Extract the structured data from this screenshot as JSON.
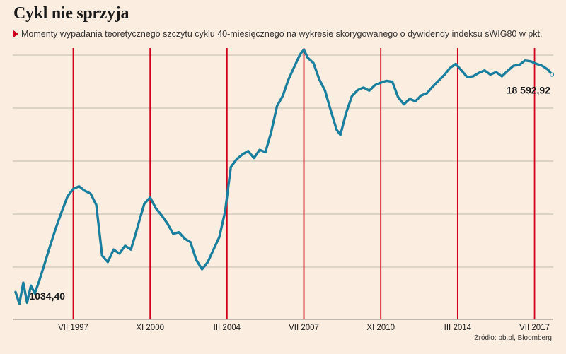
{
  "header": {
    "title": "Cykl nie sprzyja",
    "subtitle": "Momenty wypadania teoretycznego szczytu cyklu 40-miesięcznego na wykresie skorygowanego o dywidendy indeksu sWIG80 w pkt."
  },
  "footer": {
    "source": "Źródło: pb.pl, Bloomberg"
  },
  "colors": {
    "background": "#fbeee0",
    "line": "#1a7e9e",
    "cycle_marker": "#d0021b",
    "grid": "#bfb6ab"
  },
  "chart_data": {
    "type": "line",
    "title": "Cykl nie sprzyja",
    "subtitle": "Momenty wypadania teoretycznego szczytu cyklu 40-miesięcznego na wykresie skorygowanego o dywidendy indeksu sWIG80 w pkt.",
    "xlabel": "",
    "ylabel": "",
    "x_tick_labels": [
      "VII 1997",
      "XI 2000",
      "III 2004",
      "VII 2007",
      "XI 2010",
      "III 2014",
      "VII 2017"
    ],
    "xlim": [
      "1995-01",
      "2018-04"
    ],
    "ylog": true,
    "ylim": [
      850,
      26000
    ],
    "grid": "horizontal",
    "cycle_peaks": [
      "1997-07",
      "2000-11",
      "2004-03",
      "2007-07",
      "2010-11",
      "2014-03",
      "2017-07"
    ],
    "annotations": {
      "start_value": "1034,40",
      "end_value": "18 592,92"
    },
    "series": [
      {
        "points": [
          [
            "1995-01",
            1200
          ],
          [
            "1995-03",
            1034
          ],
          [
            "1995-05",
            1350
          ],
          [
            "1995-07",
            1050
          ],
          [
            "1995-09",
            1300
          ],
          [
            "1995-11",
            1180
          ],
          [
            "1996-01",
            1350
          ],
          [
            "1996-04",
            1700
          ],
          [
            "1996-07",
            2150
          ],
          [
            "1996-10",
            2700
          ],
          [
            "1997-01",
            3300
          ],
          [
            "1997-04",
            4000
          ],
          [
            "1997-07",
            4400
          ],
          [
            "1997-10",
            4550
          ],
          [
            "1998-01",
            4300
          ],
          [
            "1998-04",
            4150
          ],
          [
            "1998-07",
            3600
          ],
          [
            "1998-10",
            1900
          ],
          [
            "1999-01",
            1750
          ],
          [
            "1999-04",
            2050
          ],
          [
            "1999-07",
            1950
          ],
          [
            "1999-10",
            2150
          ],
          [
            "2000-01",
            2050
          ],
          [
            "2000-03",
            2400
          ],
          [
            "2000-06",
            3100
          ],
          [
            "2000-08",
            3650
          ],
          [
            "2000-11",
            3950
          ],
          [
            "2001-02",
            3450
          ],
          [
            "2001-05",
            3150
          ],
          [
            "2001-08",
            2850
          ],
          [
            "2001-11",
            2500
          ],
          [
            "2002-02",
            2550
          ],
          [
            "2002-05",
            2350
          ],
          [
            "2002-08",
            2250
          ],
          [
            "2002-11",
            1800
          ],
          [
            "2003-02",
            1600
          ],
          [
            "2003-05",
            1750
          ],
          [
            "2003-08",
            2050
          ],
          [
            "2003-11",
            2400
          ],
          [
            "2004-02",
            3300
          ],
          [
            "2004-05",
            5800
          ],
          [
            "2004-08",
            6400
          ],
          [
            "2004-11",
            6800
          ],
          [
            "2005-02",
            7100
          ],
          [
            "2005-05",
            6500
          ],
          [
            "2005-08",
            7200
          ],
          [
            "2005-11",
            7000
          ],
          [
            "2006-02",
            9000
          ],
          [
            "2006-05",
            12500
          ],
          [
            "2006-08",
            14200
          ],
          [
            "2006-11",
            17500
          ],
          [
            "2007-02",
            20500
          ],
          [
            "2007-05",
            24000
          ],
          [
            "2007-07",
            25500
          ],
          [
            "2007-09",
            23000
          ],
          [
            "2007-12",
            21500
          ],
          [
            "2008-03",
            17500
          ],
          [
            "2008-06",
            15200
          ],
          [
            "2008-09",
            11800
          ],
          [
            "2008-12",
            9300
          ],
          [
            "2009-02",
            8700
          ],
          [
            "2009-05",
            11500
          ],
          [
            "2009-08",
            14200
          ],
          [
            "2009-11",
            15300
          ],
          [
            "2010-02",
            15800
          ],
          [
            "2010-05",
            15200
          ],
          [
            "2010-08",
            16300
          ],
          [
            "2010-11",
            16800
          ],
          [
            "2011-02",
            17200
          ],
          [
            "2011-05",
            17000
          ],
          [
            "2011-08",
            14000
          ],
          [
            "2011-11",
            12800
          ],
          [
            "2012-02",
            13700
          ],
          [
            "2012-05",
            13300
          ],
          [
            "2012-08",
            14300
          ],
          [
            "2012-11",
            14700
          ],
          [
            "2013-02",
            16000
          ],
          [
            "2013-05",
            17200
          ],
          [
            "2013-08",
            18500
          ],
          [
            "2013-11",
            20200
          ],
          [
            "2014-02",
            21300
          ],
          [
            "2014-05",
            19600
          ],
          [
            "2014-08",
            18000
          ],
          [
            "2014-11",
            18200
          ],
          [
            "2015-02",
            19000
          ],
          [
            "2015-05",
            19600
          ],
          [
            "2015-08",
            18600
          ],
          [
            "2015-11",
            19200
          ],
          [
            "2016-02",
            18200
          ],
          [
            "2016-05",
            19500
          ],
          [
            "2016-08",
            20800
          ],
          [
            "2016-11",
            21000
          ],
          [
            "2017-02",
            22200
          ],
          [
            "2017-05",
            22000
          ],
          [
            "2017-08",
            21300
          ],
          [
            "2017-11",
            20800
          ],
          [
            "2018-02",
            19800
          ],
          [
            "2018-04",
            18593
          ]
        ]
      }
    ]
  }
}
